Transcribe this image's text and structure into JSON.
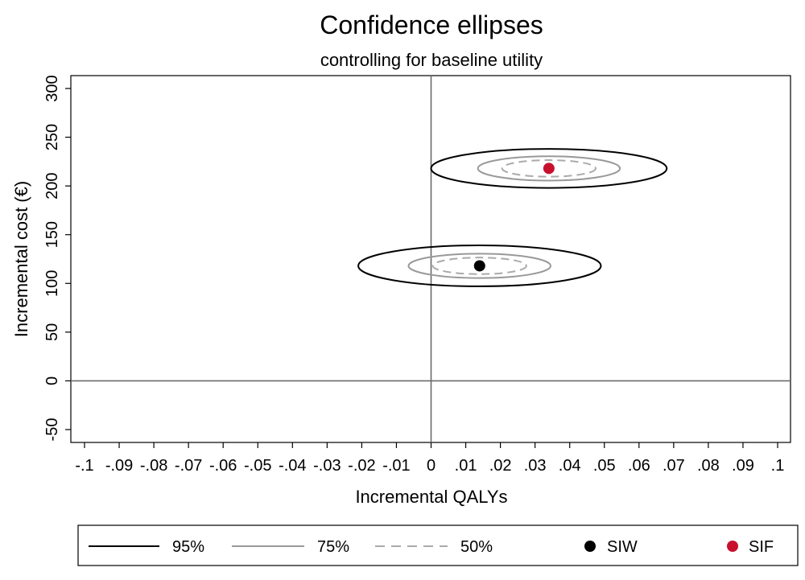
{
  "chart_data": {
    "type": "scatter",
    "title": "Confidence ellipses",
    "subtitle": "controlling for baseline utility",
    "xlabel": "Incremental QALYs",
    "ylabel": "Incremental cost (€)",
    "xlim": [
      -0.1,
      0.1
    ],
    "ylim": [
      -50,
      300
    ],
    "x_ticks": [
      -0.1,
      -0.09,
      -0.08,
      -0.07,
      -0.06,
      -0.05,
      -0.04,
      -0.03,
      -0.02,
      -0.01,
      0,
      0.01,
      0.02,
      0.03,
      0.04,
      0.05,
      0.06,
      0.07,
      0.08,
      0.09,
      0.1
    ],
    "x_tick_labels": [
      "-.1",
      "-.09",
      "-.08",
      "-.07",
      "-.06",
      "-.05",
      "-.04",
      "-.03",
      "-.02",
      "-.01",
      "0",
      ".01",
      ".02",
      ".03",
      ".04",
      ".05",
      ".06",
      ".07",
      ".08",
      ".09",
      ".1"
    ],
    "y_ticks": [
      -50,
      0,
      50,
      100,
      150,
      200,
      250,
      300
    ],
    "y_tick_labels": [
      "-50",
      "0",
      "50",
      "100",
      "150",
      "200",
      "250",
      "300"
    ],
    "grid": false,
    "reference_lines": {
      "x": 0,
      "y": 0
    },
    "points": [
      {
        "name": "SIW",
        "x": 0.014,
        "y": 118,
        "color": "#000000"
      },
      {
        "name": "SIF",
        "x": 0.034,
        "y": 218,
        "color": "#c8102e"
      }
    ],
    "ellipses": [
      {
        "series": "SIW",
        "level": "95%",
        "cx": 0.014,
        "cy": 118,
        "half_width_x": 0.035,
        "half_height_y": 21
      },
      {
        "series": "SIW",
        "level": "75%",
        "cx": 0.014,
        "cy": 118,
        "half_width_x": 0.0205,
        "half_height_y": 12.5
      },
      {
        "series": "SIW",
        "level": "50%",
        "cx": 0.014,
        "cy": 118,
        "half_width_x": 0.0135,
        "half_height_y": 8.5
      },
      {
        "series": "SIF",
        "level": "95%",
        "cx": 0.034,
        "cy": 218,
        "half_width_x": 0.034,
        "half_height_y": 20
      },
      {
        "series": "SIF",
        "level": "75%",
        "cx": 0.034,
        "cy": 218,
        "half_width_x": 0.0205,
        "half_height_y": 12.5
      },
      {
        "series": "SIF",
        "level": "50%",
        "cx": 0.034,
        "cy": 218,
        "half_width_x": 0.0135,
        "half_height_y": 8.5
      }
    ],
    "legend": {
      "placement": "bottom",
      "entries": [
        {
          "label": "95%",
          "kind": "line",
          "style": "solid",
          "color": "#000000"
        },
        {
          "label": "75%",
          "kind": "line",
          "style": "solid",
          "color": "#999999"
        },
        {
          "label": "50%",
          "kind": "line",
          "style": "dashed",
          "color": "#aaaaaa"
        },
        {
          "label": "SIW",
          "kind": "marker",
          "color": "#000000"
        },
        {
          "label": "SIF",
          "kind": "marker",
          "color": "#c8102e"
        }
      ]
    }
  }
}
